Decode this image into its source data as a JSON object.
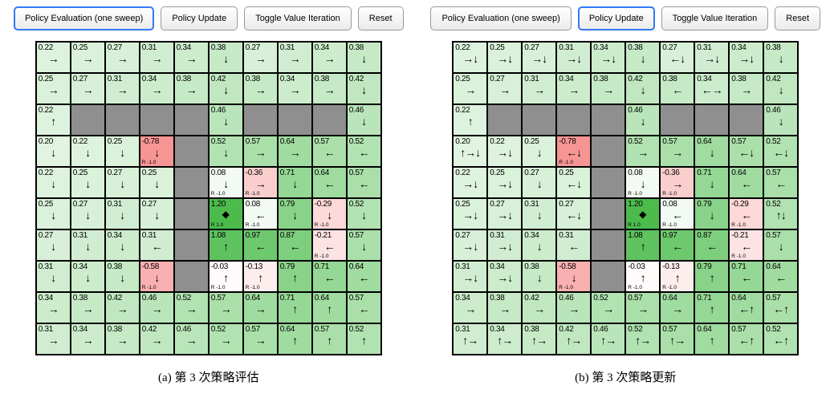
{
  "colors": {
    "wall": "#8f8f8f",
    "positive": "#4cbb4c",
    "negative": "#f68282",
    "cell_border": "#000000",
    "button_active_border": "#3478f6",
    "value_max": 1.2
  },
  "panels": [
    {
      "caption": "(a) 第 3 次策略评估",
      "buttons": [
        {
          "label": "Policy Evaluation (one sweep)",
          "active": true
        },
        {
          "label": "Policy Update",
          "active": false
        },
        {
          "label": "Toggle Value Iteration",
          "active": false
        },
        {
          "label": "Reset",
          "active": false
        }
      ],
      "grid": [
        [
          {
            "v": "0.22",
            "a": "→"
          },
          {
            "v": "0.25",
            "a": "→"
          },
          {
            "v": "0.27",
            "a": "→"
          },
          {
            "v": "0.31",
            "a": "→"
          },
          {
            "v": "0.34",
            "a": "→"
          },
          {
            "v": "0.38",
            "a": "↓"
          },
          {
            "v": "0.27",
            "a": "→"
          },
          {
            "v": "0.31",
            "a": "→"
          },
          {
            "v": "0.34",
            "a": "→"
          },
          {
            "v": "0.38",
            "a": "↓"
          }
        ],
        [
          {
            "v": "0.25",
            "a": "→"
          },
          {
            "v": "0.27",
            "a": "→"
          },
          {
            "v": "0.31",
            "a": "→"
          },
          {
            "v": "0.34",
            "a": "→"
          },
          {
            "v": "0.38",
            "a": "→"
          },
          {
            "v": "0.42",
            "a": "↓"
          },
          {
            "v": "0.38",
            "a": "→"
          },
          {
            "v": "0.34",
            "a": "→"
          },
          {
            "v": "0.38",
            "a": "→"
          },
          {
            "v": "0.42",
            "a": "↓"
          }
        ],
        [
          {
            "v": "0.22",
            "a": "↑"
          },
          {
            "w": 1
          },
          {
            "w": 1
          },
          {
            "w": 1
          },
          {
            "w": 1
          },
          {
            "v": "0.46",
            "a": "↓"
          },
          {
            "w": 1
          },
          {
            "w": 1
          },
          {
            "w": 1
          },
          {
            "v": "0.46",
            "a": "↓"
          }
        ],
        [
          {
            "v": "0.20",
            "a": "↓"
          },
          {
            "v": "0.22",
            "a": "↓"
          },
          {
            "v": "0.25",
            "a": "↓"
          },
          {
            "v": "-0.78",
            "a": "↓",
            "r": "R -1.0"
          },
          {
            "w": 1
          },
          {
            "v": "0.52",
            "a": "↓"
          },
          {
            "v": "0.57",
            "a": "→"
          },
          {
            "v": "0.64",
            "a": "→"
          },
          {
            "v": "0.57",
            "a": "←"
          },
          {
            "v": "0.52",
            "a": "←"
          }
        ],
        [
          {
            "v": "0.22",
            "a": "↓"
          },
          {
            "v": "0.25",
            "a": "↓"
          },
          {
            "v": "0.27",
            "a": "↓"
          },
          {
            "v": "0.25",
            "a": "↓"
          },
          {
            "w": 1
          },
          {
            "v": "0.08",
            "a": "↓",
            "r": "R -1.0"
          },
          {
            "v": "-0.36",
            "a": "→",
            "r": "R -1.0"
          },
          {
            "v": "0.71",
            "a": "↓"
          },
          {
            "v": "0.64",
            "a": "←"
          },
          {
            "v": "0.57",
            "a": "←"
          }
        ],
        [
          {
            "v": "0.25",
            "a": "↓"
          },
          {
            "v": "0.27",
            "a": "↓"
          },
          {
            "v": "0.31",
            "a": "↓"
          },
          {
            "v": "0.27",
            "a": "↓"
          },
          {
            "w": 1
          },
          {
            "v": "1.20",
            "g": 1,
            "r": "R 1.0"
          },
          {
            "v": "0.08",
            "a": "←",
            "r": "R -1.0"
          },
          {
            "v": "0.79",
            "a": "↓"
          },
          {
            "v": "-0.29",
            "a": "↓",
            "r": "R -1.0"
          },
          {
            "v": "0.52",
            "a": "↓"
          }
        ],
        [
          {
            "v": "0.27",
            "a": "↓"
          },
          {
            "v": "0.31",
            "a": "↓"
          },
          {
            "v": "0.34",
            "a": "↓"
          },
          {
            "v": "0.31",
            "a": "←"
          },
          {
            "w": 1
          },
          {
            "v": "1.08",
            "a": "↑"
          },
          {
            "v": "0.97",
            "a": "←"
          },
          {
            "v": "0.87",
            "a": "←"
          },
          {
            "v": "-0.21",
            "a": "←",
            "r": "R -1.0"
          },
          {
            "v": "0.57",
            "a": "↓"
          }
        ],
        [
          {
            "v": "0.31",
            "a": "↓"
          },
          {
            "v": "0.34",
            "a": "↓"
          },
          {
            "v": "0.38",
            "a": "↓"
          },
          {
            "v": "-0.58",
            "a": "↓",
            "r": "R -1.0"
          },
          {
            "w": 1
          },
          {
            "v": "-0.03",
            "a": "↑",
            "r": "R -1.0"
          },
          {
            "v": "-0.13",
            "a": "↑",
            "r": "R -1.0"
          },
          {
            "v": "0.79",
            "a": "↑"
          },
          {
            "v": "0.71",
            "a": "←"
          },
          {
            "v": "0.64",
            "a": "←"
          }
        ],
        [
          {
            "v": "0.34",
            "a": "→"
          },
          {
            "v": "0.38",
            "a": "→"
          },
          {
            "v": "0.42",
            "a": "→"
          },
          {
            "v": "0.46",
            "a": "→"
          },
          {
            "v": "0.52",
            "a": "→"
          },
          {
            "v": "0.57",
            "a": "→"
          },
          {
            "v": "0.64",
            "a": "→"
          },
          {
            "v": "0.71",
            "a": "↑"
          },
          {
            "v": "0.64",
            "a": "↑"
          },
          {
            "v": "0.57",
            "a": "←"
          }
        ],
        [
          {
            "v": "0.31",
            "a": "→"
          },
          {
            "v": "0.34",
            "a": "→"
          },
          {
            "v": "0.38",
            "a": "→"
          },
          {
            "v": "0.42",
            "a": "→"
          },
          {
            "v": "0.46",
            "a": "→"
          },
          {
            "v": "0.52",
            "a": "→"
          },
          {
            "v": "0.57",
            "a": "→"
          },
          {
            "v": "0.64",
            "a": "↑"
          },
          {
            "v": "0.57",
            "a": "↑"
          },
          {
            "v": "0.52",
            "a": "↑"
          }
        ]
      ]
    },
    {
      "caption": "(b) 第 3 次策略更新",
      "buttons": [
        {
          "label": "Policy Evaluation (one sweep)",
          "active": false
        },
        {
          "label": "Policy Update",
          "active": true
        },
        {
          "label": "Toggle Value Iteration",
          "active": false
        },
        {
          "label": "Reset",
          "active": false
        }
      ],
      "grid": [
        [
          {
            "v": "0.22",
            "a": "→↓"
          },
          {
            "v": "0.25",
            "a": "→↓"
          },
          {
            "v": "0.27",
            "a": "→↓"
          },
          {
            "v": "0.31",
            "a": "→↓"
          },
          {
            "v": "0.34",
            "a": "→↓"
          },
          {
            "v": "0.38",
            "a": "↓"
          },
          {
            "v": "0.27",
            "a": "←↓"
          },
          {
            "v": "0.31",
            "a": "→↓"
          },
          {
            "v": "0.34",
            "a": "→↓"
          },
          {
            "v": "0.38",
            "a": "↓"
          }
        ],
        [
          {
            "v": "0.25",
            "a": "→"
          },
          {
            "v": "0.27",
            "a": "→"
          },
          {
            "v": "0.31",
            "a": "→"
          },
          {
            "v": "0.34",
            "a": "→"
          },
          {
            "v": "0.38",
            "a": "→"
          },
          {
            "v": "0.42",
            "a": "↓"
          },
          {
            "v": "0.38",
            "a": "←"
          },
          {
            "v": "0.34",
            "a": "←→"
          },
          {
            "v": "0.38",
            "a": "→"
          },
          {
            "v": "0.42",
            "a": "↓"
          }
        ],
        [
          {
            "v": "0.22",
            "a": "↑"
          },
          {
            "w": 1
          },
          {
            "w": 1
          },
          {
            "w": 1
          },
          {
            "w": 1
          },
          {
            "v": "0.46",
            "a": "↓"
          },
          {
            "w": 1
          },
          {
            "w": 1
          },
          {
            "w": 1
          },
          {
            "v": "0.46",
            "a": "↓"
          }
        ],
        [
          {
            "v": "0.20",
            "a": "↑→↓"
          },
          {
            "v": "0.22",
            "a": "→↓"
          },
          {
            "v": "0.25",
            "a": "↓"
          },
          {
            "v": "-0.78",
            "a": "←↓",
            "r": "R -1.0"
          },
          {
            "w": 1
          },
          {
            "v": "0.52",
            "a": "→"
          },
          {
            "v": "0.57",
            "a": "→"
          },
          {
            "v": "0.64",
            "a": "↓"
          },
          {
            "v": "0.57",
            "a": "←↓"
          },
          {
            "v": "0.52",
            "a": "←↓"
          }
        ],
        [
          {
            "v": "0.22",
            "a": "→↓"
          },
          {
            "v": "0.25",
            "a": "→↓"
          },
          {
            "v": "0.27",
            "a": "↓"
          },
          {
            "v": "0.25",
            "a": "←↓"
          },
          {
            "w": 1
          },
          {
            "v": "0.08",
            "a": "↓",
            "r": "R -1.0"
          },
          {
            "v": "-0.36",
            "a": "→",
            "r": "R -1.0"
          },
          {
            "v": "0.71",
            "a": "↓"
          },
          {
            "v": "0.64",
            "a": "←"
          },
          {
            "v": "0.57",
            "a": "←"
          }
        ],
        [
          {
            "v": "0.25",
            "a": "→↓"
          },
          {
            "v": "0.27",
            "a": "→↓"
          },
          {
            "v": "0.31",
            "a": "↓"
          },
          {
            "v": "0.27",
            "a": "←↓"
          },
          {
            "w": 1
          },
          {
            "v": "1.20",
            "g": 1,
            "r": "R 1.0"
          },
          {
            "v": "0.08",
            "a": "←",
            "r": "R -1.0"
          },
          {
            "v": "0.79",
            "a": "↓"
          },
          {
            "v": "-0.29",
            "a": "←",
            "r": "R -1.0"
          },
          {
            "v": "0.52",
            "a": "↑↓"
          }
        ],
        [
          {
            "v": "0.27",
            "a": "→↓"
          },
          {
            "v": "0.31",
            "a": "→↓"
          },
          {
            "v": "0.34",
            "a": "↓"
          },
          {
            "v": "0.31",
            "a": "←"
          },
          {
            "w": 1
          },
          {
            "v": "1.08",
            "a": "↑"
          },
          {
            "v": "0.97",
            "a": "←"
          },
          {
            "v": "0.87",
            "a": "←"
          },
          {
            "v": "-0.21",
            "a": "←",
            "r": "R -1.0"
          },
          {
            "v": "0.57",
            "a": "↓"
          }
        ],
        [
          {
            "v": "0.31",
            "a": "→↓"
          },
          {
            "v": "0.34",
            "a": "→↓"
          },
          {
            "v": "0.38",
            "a": "↓"
          },
          {
            "v": "-0.58",
            "a": "↓",
            "r": "R -1.0"
          },
          {
            "w": 1
          },
          {
            "v": "-0.03",
            "a": "↑",
            "r": "R -1.0"
          },
          {
            "v": "-0.13",
            "a": "↑",
            "r": "R -1.0"
          },
          {
            "v": "0.79",
            "a": "↑"
          },
          {
            "v": "0.71",
            "a": "←"
          },
          {
            "v": "0.64",
            "a": "←"
          }
        ],
        [
          {
            "v": "0.34",
            "a": "→"
          },
          {
            "v": "0.38",
            "a": "→"
          },
          {
            "v": "0.42",
            "a": "→"
          },
          {
            "v": "0.46",
            "a": "→"
          },
          {
            "v": "0.52",
            "a": "→"
          },
          {
            "v": "0.57",
            "a": "→"
          },
          {
            "v": "0.64",
            "a": "→"
          },
          {
            "v": "0.71",
            "a": "↑"
          },
          {
            "v": "0.64",
            "a": "←↑"
          },
          {
            "v": "0.57",
            "a": "←↑"
          }
        ],
        [
          {
            "v": "0.31",
            "a": "↑→"
          },
          {
            "v": "0.34",
            "a": "↑→"
          },
          {
            "v": "0.38",
            "a": "↑→"
          },
          {
            "v": "0.42",
            "a": "↑→"
          },
          {
            "v": "0.46",
            "a": "↑→"
          },
          {
            "v": "0.52",
            "a": "↑→"
          },
          {
            "v": "0.57",
            "a": "↑→"
          },
          {
            "v": "0.64",
            "a": "↑"
          },
          {
            "v": "0.57",
            "a": "←↑"
          },
          {
            "v": "0.52",
            "a": "←↑"
          }
        ]
      ]
    }
  ]
}
